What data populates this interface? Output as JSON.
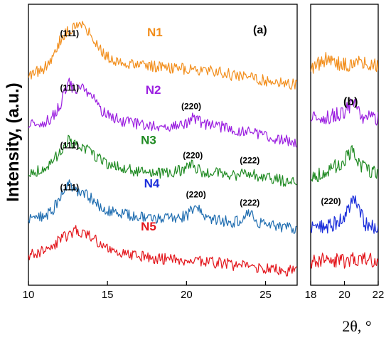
{
  "chart_data": [
    {
      "panel": "(a)",
      "type": "line",
      "xlabel": "2θ, °",
      "ylabel": "Intensity, (a.u.)",
      "xlim": [
        10,
        27
      ],
      "xticks": [
        10,
        15,
        20,
        25
      ],
      "grid": false,
      "series": [
        {
          "name": "N1",
          "color": "#f28e1c",
          "x": [
            10.0,
            11.0,
            11.5,
            12.0,
            12.5,
            13.0,
            13.5,
            14.0,
            14.5,
            15.0,
            16.0,
            17.0,
            18.0,
            19.0,
            20.0,
            21.0,
            22.0,
            23.0,
            24.0,
            25.0,
            26.0,
            27.0
          ],
          "y": [
            6.2,
            6.4,
            6.7,
            7.25,
            7.5,
            7.7,
            7.65,
            7.4,
            7.0,
            6.75,
            6.55,
            6.5,
            6.45,
            6.4,
            6.4,
            6.35,
            6.3,
            6.2,
            6.15,
            6.05,
            6.0,
            5.9
          ]
        },
        {
          "name": "N2",
          "color": "#9b1fe0",
          "x": [
            10.0,
            11.0,
            11.5,
            12.0,
            12.5,
            13.0,
            13.5,
            14.0,
            14.5,
            15.0,
            16.0,
            17.0,
            18.0,
            19.0,
            20.0,
            20.4,
            21.0,
            22.0,
            23.0,
            24.0,
            25.0,
            26.0,
            27.0
          ],
          "y": [
            4.7,
            4.8,
            4.95,
            5.3,
            6.0,
            5.7,
            5.85,
            5.6,
            5.2,
            5.0,
            4.85,
            4.75,
            4.7,
            4.72,
            4.8,
            5.0,
            4.75,
            4.7,
            4.6,
            4.5,
            4.4,
            4.3,
            4.2
          ]
        },
        {
          "name": "N3",
          "color": "#1f8a22",
          "x": [
            10.0,
            11.0,
            11.5,
            12.0,
            12.5,
            13.0,
            13.5,
            14.0,
            14.5,
            15.0,
            16.0,
            17.0,
            18.0,
            19.0,
            19.6,
            20.3,
            21.0,
            22.0,
            23.0,
            23.9,
            24.5,
            25.5,
            26.5,
            27.0
          ],
          "y": [
            3.3,
            3.45,
            3.6,
            3.95,
            4.3,
            4.1,
            4.05,
            3.9,
            3.75,
            3.6,
            3.45,
            3.35,
            3.3,
            3.3,
            3.4,
            3.55,
            3.35,
            3.3,
            3.25,
            3.35,
            3.2,
            3.15,
            3.05,
            3.0
          ]
        },
        {
          "name": "N4",
          "color": "#1f6db0",
          "x": [
            10.0,
            11.0,
            11.5,
            12.0,
            12.5,
            13.0,
            13.5,
            14.0,
            14.5,
            15.0,
            16.0,
            17.0,
            18.0,
            19.0,
            20.0,
            20.6,
            21.2,
            22.0,
            23.0,
            24.0,
            24.6,
            25.5,
            26.5,
            27.0
          ],
          "y": [
            1.95,
            2.05,
            2.2,
            2.6,
            3.05,
            2.8,
            2.7,
            2.55,
            2.35,
            2.2,
            2.1,
            2.0,
            1.98,
            1.96,
            2.05,
            2.35,
            2.0,
            1.92,
            1.85,
            2.1,
            1.82,
            1.75,
            1.7,
            1.68
          ]
        },
        {
          "name": "N5",
          "color": "#e3151b",
          "x": [
            10.0,
            11.0,
            11.5,
            12.0,
            12.5,
            13.0,
            13.5,
            14.0,
            14.5,
            15.0,
            16.0,
            17.0,
            18.0,
            19.0,
            20.0,
            21.0,
            22.0,
            23.0,
            24.0,
            25.0,
            26.0,
            27.0
          ],
          "y": [
            0.9,
            1.0,
            1.15,
            1.35,
            1.5,
            1.6,
            1.55,
            1.4,
            1.25,
            1.1,
            0.95,
            0.85,
            0.8,
            0.75,
            0.72,
            0.7,
            0.65,
            0.6,
            0.55,
            0.5,
            0.45,
            0.4
          ]
        }
      ],
      "peak_labels": [
        {
          "text": "(111)",
          "x": 12.6,
          "y": 7.35
        },
        {
          "text": "(111)",
          "x": 12.6,
          "y": 5.75
        },
        {
          "text": "(220)",
          "x": 20.3,
          "y": 5.2
        },
        {
          "text": "(111)",
          "x": 12.6,
          "y": 4.05
        },
        {
          "text": "(220)",
          "x": 20.4,
          "y": 3.75
        },
        {
          "text": "(222)",
          "x": 24.0,
          "y": 3.6
        },
        {
          "text": "(111)",
          "x": 12.6,
          "y": 2.8
        },
        {
          "text": "(220)",
          "x": 20.6,
          "y": 2.6
        },
        {
          "text": "(222)",
          "x": 24.0,
          "y": 2.35
        }
      ]
    },
    {
      "panel": "(b)",
      "type": "line",
      "xlim": [
        18,
        22
      ],
      "xticks": [
        18,
        20,
        22
      ],
      "grid": false,
      "series": [
        {
          "name": "N1",
          "color": "#f28e1c",
          "x": [
            18.0,
            19.0,
            20.0,
            21.0,
            22.0
          ],
          "y": [
            6.4,
            6.7,
            6.5,
            6.6,
            6.5
          ]
        },
        {
          "name": "N2",
          "color": "#9b1fe0",
          "x": [
            18.0,
            19.0,
            20.0,
            20.5,
            21.0,
            22.0
          ],
          "y": [
            4.9,
            4.95,
            5.1,
            5.4,
            5.0,
            4.9
          ]
        },
        {
          "name": "N3",
          "color": "#1f8a22",
          "x": [
            18.0,
            19.0,
            19.8,
            20.4,
            21.0,
            22.0
          ],
          "y": [
            3.2,
            3.35,
            3.6,
            3.95,
            3.5,
            3.3
          ]
        },
        {
          "name": "N4",
          "color": "#1a2ddb",
          "x": [
            18.0,
            19.0,
            19.8,
            20.6,
            21.2,
            22.0
          ],
          "y": [
            1.7,
            1.75,
            1.9,
            2.6,
            1.8,
            1.7
          ]
        },
        {
          "name": "N5",
          "color": "#e3151b",
          "x": [
            18.0,
            19.0,
            20.0,
            21.0,
            22.0
          ],
          "y": [
            0.7,
            0.75,
            0.72,
            0.78,
            0.7
          ]
        }
      ],
      "peak_labels": [
        {
          "text": "(220)",
          "x": 19.2,
          "y": 2.4
        }
      ]
    }
  ]
}
